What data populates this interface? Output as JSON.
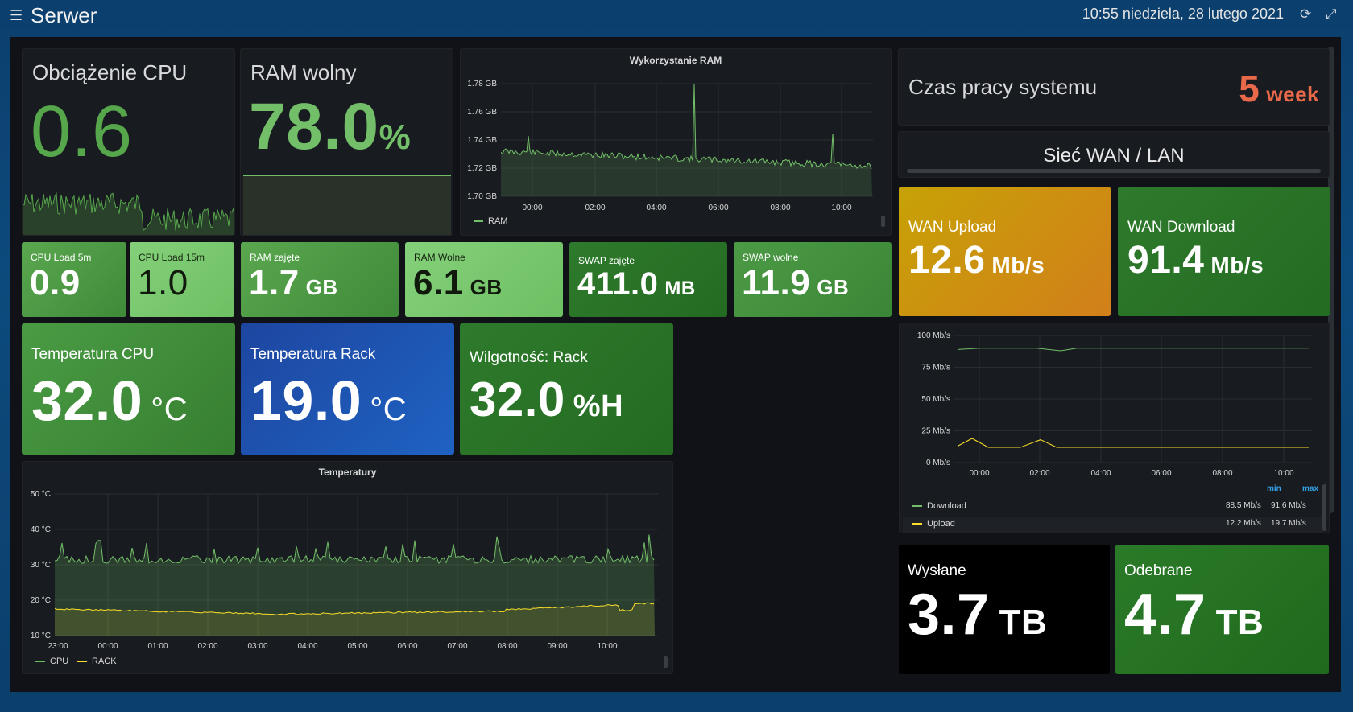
{
  "header": {
    "title": "Serwer",
    "datetime": "10:55 niedziela, 28 lutego 2021",
    "menu_icon": "hamburger-icon",
    "refresh_icon": "refresh-icon",
    "fullscreen_icon": "expand-icon"
  },
  "cpu_load": {
    "title": "Obciążenie CPU",
    "value": "0.6"
  },
  "ram_free": {
    "title": "RAM wolny",
    "value": "78.0",
    "unit": "%"
  },
  "ram_usage": {
    "title": "Wykorzystanie RAM",
    "series": "RAM",
    "yticks": [
      "1.78 GB",
      "1.76 GB",
      "1.74 GB",
      "1.72 GB",
      "1.70 GB"
    ],
    "xticks": [
      "00:00",
      "02:00",
      "04:00",
      "06:00",
      "08:00",
      "10:00"
    ]
  },
  "uptime": {
    "title": "Czas pracy systemu",
    "value": "5",
    "unit": "week"
  },
  "net_header": {
    "title": "Sieć WAN / LAN"
  },
  "wan_upload": {
    "title": "WAN Upload",
    "value": "12.6",
    "unit": "Mb/s"
  },
  "wan_download": {
    "title": "WAN Download",
    "value": "91.4",
    "unit": "Mb/s"
  },
  "small_stats": [
    {
      "title": "CPU Load 5m",
      "value": "0.9",
      "unit": ""
    },
    {
      "title": "CPU Load 15m",
      "value": "1.0",
      "unit": ""
    },
    {
      "title": "RAM zajęte",
      "value": "1.7",
      "unit": "GB"
    },
    {
      "title": "RAM Wolne",
      "value": "6.1",
      "unit": "GB"
    },
    {
      "title": "SWAP zajęte",
      "value": "411.0",
      "unit": "MB"
    },
    {
      "title": "SWAP wolne",
      "value": "11.9",
      "unit": "GB"
    }
  ],
  "temp_cpu": {
    "title": "Temperatura CPU",
    "value": "32.0",
    "unit": "°C"
  },
  "temp_rack": {
    "title": "Temperatura Rack",
    "value": "19.0",
    "unit": "°C"
  },
  "humidity": {
    "title": "Wilgotność: Rack",
    "value": "32.0",
    "unit": "%H"
  },
  "temperatures": {
    "title": "Temperatury",
    "yticks": [
      "50 °C",
      "40 °C",
      "30 °C",
      "20 °C",
      "10 °C"
    ],
    "xticks": [
      "23:00",
      "00:00",
      "01:00",
      "02:00",
      "03:00",
      "04:00",
      "05:00",
      "06:00",
      "07:00",
      "08:00",
      "09:00",
      "10:00"
    ],
    "series": [
      "CPU",
      "RACK"
    ]
  },
  "network_graph": {
    "yticks": [
      "100 Mb/s",
      "75 Mb/s",
      "50 Mb/s",
      "25 Mb/s",
      "0 Mb/s"
    ],
    "xticks": [
      "00:00",
      "02:00",
      "04:00",
      "06:00",
      "08:00",
      "10:00"
    ],
    "legend_header": {
      "min": "min",
      "max": "max"
    },
    "legend": [
      {
        "name": "Download",
        "min": "88.5 Mb/s",
        "max": "91.6 Mb/s"
      },
      {
        "name": "Upload",
        "min": "12.2 Mb/s",
        "max": "19.7 Mb/s"
      }
    ]
  },
  "sent": {
    "title": "Wysłane",
    "value": "3.7",
    "unit": "TB"
  },
  "received": {
    "title": "Odebrane",
    "value": "4.7",
    "unit": "TB"
  },
  "colors": {
    "green": "#56a64b",
    "light_green": "#73bf69",
    "yellow": "#e0b400",
    "orange": "#ff7d2b",
    "blue": "#1f60c4",
    "red": "#f2495c",
    "panel": "#181b1f",
    "background": "#111217"
  }
}
